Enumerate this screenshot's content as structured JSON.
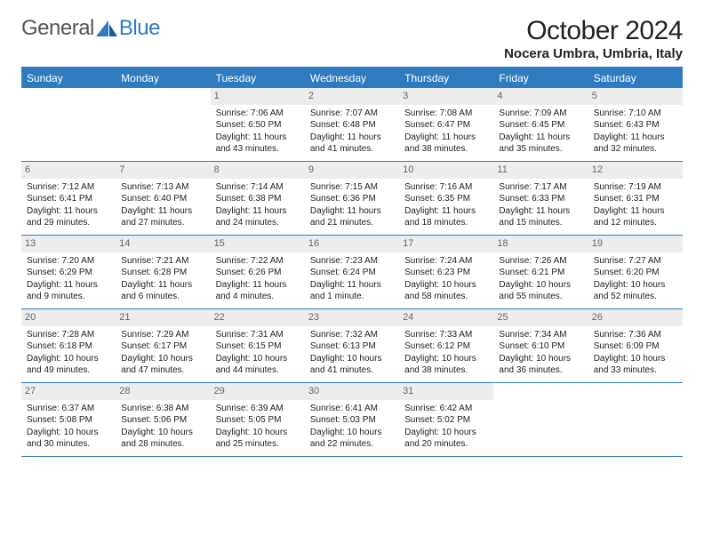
{
  "logo": {
    "part1": "General",
    "part2": "Blue"
  },
  "title": "October 2024",
  "location": "Nocera Umbra, Umbria, Italy",
  "colors": {
    "brand_blue": "#2f7bbf",
    "daynum_bg": "#ededed",
    "text": "#222222",
    "muted": "#666666"
  },
  "dayNames": [
    "Sunday",
    "Monday",
    "Tuesday",
    "Wednesday",
    "Thursday",
    "Friday",
    "Saturday"
  ],
  "weeks": [
    [
      null,
      null,
      {
        "n": "1",
        "sr": "Sunrise: 7:06 AM",
        "ss": "Sunset: 6:50 PM",
        "dl1": "Daylight: 11 hours",
        "dl2": "and 43 minutes."
      },
      {
        "n": "2",
        "sr": "Sunrise: 7:07 AM",
        "ss": "Sunset: 6:48 PM",
        "dl1": "Daylight: 11 hours",
        "dl2": "and 41 minutes."
      },
      {
        "n": "3",
        "sr": "Sunrise: 7:08 AM",
        "ss": "Sunset: 6:47 PM",
        "dl1": "Daylight: 11 hours",
        "dl2": "and 38 minutes."
      },
      {
        "n": "4",
        "sr": "Sunrise: 7:09 AM",
        "ss": "Sunset: 6:45 PM",
        "dl1": "Daylight: 11 hours",
        "dl2": "and 35 minutes."
      },
      {
        "n": "5",
        "sr": "Sunrise: 7:10 AM",
        "ss": "Sunset: 6:43 PM",
        "dl1": "Daylight: 11 hours",
        "dl2": "and 32 minutes."
      }
    ],
    [
      {
        "n": "6",
        "sr": "Sunrise: 7:12 AM",
        "ss": "Sunset: 6:41 PM",
        "dl1": "Daylight: 11 hours",
        "dl2": "and 29 minutes."
      },
      {
        "n": "7",
        "sr": "Sunrise: 7:13 AM",
        "ss": "Sunset: 6:40 PM",
        "dl1": "Daylight: 11 hours",
        "dl2": "and 27 minutes."
      },
      {
        "n": "8",
        "sr": "Sunrise: 7:14 AM",
        "ss": "Sunset: 6:38 PM",
        "dl1": "Daylight: 11 hours",
        "dl2": "and 24 minutes."
      },
      {
        "n": "9",
        "sr": "Sunrise: 7:15 AM",
        "ss": "Sunset: 6:36 PM",
        "dl1": "Daylight: 11 hours",
        "dl2": "and 21 minutes."
      },
      {
        "n": "10",
        "sr": "Sunrise: 7:16 AM",
        "ss": "Sunset: 6:35 PM",
        "dl1": "Daylight: 11 hours",
        "dl2": "and 18 minutes."
      },
      {
        "n": "11",
        "sr": "Sunrise: 7:17 AM",
        "ss": "Sunset: 6:33 PM",
        "dl1": "Daylight: 11 hours",
        "dl2": "and 15 minutes."
      },
      {
        "n": "12",
        "sr": "Sunrise: 7:19 AM",
        "ss": "Sunset: 6:31 PM",
        "dl1": "Daylight: 11 hours",
        "dl2": "and 12 minutes."
      }
    ],
    [
      {
        "n": "13",
        "sr": "Sunrise: 7:20 AM",
        "ss": "Sunset: 6:29 PM",
        "dl1": "Daylight: 11 hours",
        "dl2": "and 9 minutes."
      },
      {
        "n": "14",
        "sr": "Sunrise: 7:21 AM",
        "ss": "Sunset: 6:28 PM",
        "dl1": "Daylight: 11 hours",
        "dl2": "and 6 minutes."
      },
      {
        "n": "15",
        "sr": "Sunrise: 7:22 AM",
        "ss": "Sunset: 6:26 PM",
        "dl1": "Daylight: 11 hours",
        "dl2": "and 4 minutes."
      },
      {
        "n": "16",
        "sr": "Sunrise: 7:23 AM",
        "ss": "Sunset: 6:24 PM",
        "dl1": "Daylight: 11 hours",
        "dl2": "and 1 minute."
      },
      {
        "n": "17",
        "sr": "Sunrise: 7:24 AM",
        "ss": "Sunset: 6:23 PM",
        "dl1": "Daylight: 10 hours",
        "dl2": "and 58 minutes."
      },
      {
        "n": "18",
        "sr": "Sunrise: 7:26 AM",
        "ss": "Sunset: 6:21 PM",
        "dl1": "Daylight: 10 hours",
        "dl2": "and 55 minutes."
      },
      {
        "n": "19",
        "sr": "Sunrise: 7:27 AM",
        "ss": "Sunset: 6:20 PM",
        "dl1": "Daylight: 10 hours",
        "dl2": "and 52 minutes."
      }
    ],
    [
      {
        "n": "20",
        "sr": "Sunrise: 7:28 AM",
        "ss": "Sunset: 6:18 PM",
        "dl1": "Daylight: 10 hours",
        "dl2": "and 49 minutes."
      },
      {
        "n": "21",
        "sr": "Sunrise: 7:29 AM",
        "ss": "Sunset: 6:17 PM",
        "dl1": "Daylight: 10 hours",
        "dl2": "and 47 minutes."
      },
      {
        "n": "22",
        "sr": "Sunrise: 7:31 AM",
        "ss": "Sunset: 6:15 PM",
        "dl1": "Daylight: 10 hours",
        "dl2": "and 44 minutes."
      },
      {
        "n": "23",
        "sr": "Sunrise: 7:32 AM",
        "ss": "Sunset: 6:13 PM",
        "dl1": "Daylight: 10 hours",
        "dl2": "and 41 minutes."
      },
      {
        "n": "24",
        "sr": "Sunrise: 7:33 AM",
        "ss": "Sunset: 6:12 PM",
        "dl1": "Daylight: 10 hours",
        "dl2": "and 38 minutes."
      },
      {
        "n": "25",
        "sr": "Sunrise: 7:34 AM",
        "ss": "Sunset: 6:10 PM",
        "dl1": "Daylight: 10 hours",
        "dl2": "and 36 minutes."
      },
      {
        "n": "26",
        "sr": "Sunrise: 7:36 AM",
        "ss": "Sunset: 6:09 PM",
        "dl1": "Daylight: 10 hours",
        "dl2": "and 33 minutes."
      }
    ],
    [
      {
        "n": "27",
        "sr": "Sunrise: 6:37 AM",
        "ss": "Sunset: 5:08 PM",
        "dl1": "Daylight: 10 hours",
        "dl2": "and 30 minutes."
      },
      {
        "n": "28",
        "sr": "Sunrise: 6:38 AM",
        "ss": "Sunset: 5:06 PM",
        "dl1": "Daylight: 10 hours",
        "dl2": "and 28 minutes."
      },
      {
        "n": "29",
        "sr": "Sunrise: 6:39 AM",
        "ss": "Sunset: 5:05 PM",
        "dl1": "Daylight: 10 hours",
        "dl2": "and 25 minutes."
      },
      {
        "n": "30",
        "sr": "Sunrise: 6:41 AM",
        "ss": "Sunset: 5:03 PM",
        "dl1": "Daylight: 10 hours",
        "dl2": "and 22 minutes."
      },
      {
        "n": "31",
        "sr": "Sunrise: 6:42 AM",
        "ss": "Sunset: 5:02 PM",
        "dl1": "Daylight: 10 hours",
        "dl2": "and 20 minutes."
      },
      null,
      null
    ]
  ]
}
